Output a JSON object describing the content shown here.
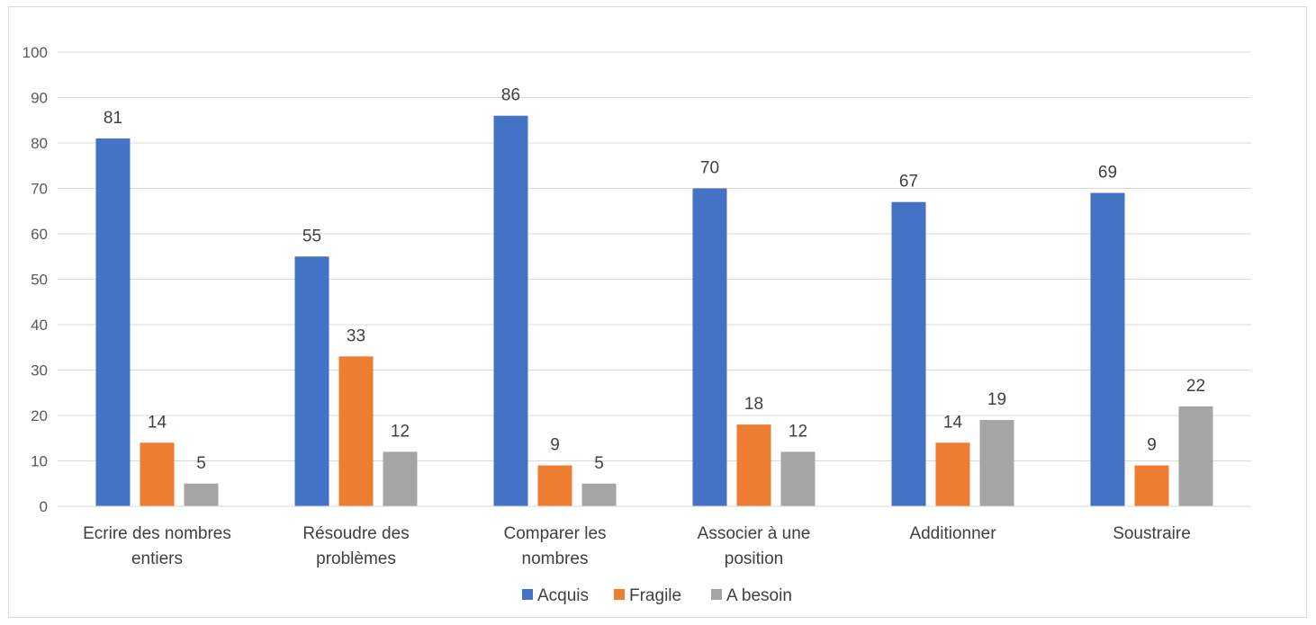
{
  "chart_data": {
    "type": "bar",
    "categories": [
      [
        "Ecrire des nombres",
        "entiers"
      ],
      [
        "Résoudre des",
        "problèmes"
      ],
      [
        "Comparer les",
        "nombres"
      ],
      [
        "Associer à une",
        "position"
      ],
      [
        "Additionner"
      ],
      [
        "Soustraire"
      ]
    ],
    "series": [
      {
        "name": "Acquis",
        "color": "#4472C4",
        "values": [
          81,
          55,
          86,
          70,
          67,
          69
        ]
      },
      {
        "name": "Fragile",
        "color": "#ED7D31",
        "values": [
          14,
          33,
          9,
          18,
          14,
          9
        ]
      },
      {
        "name": "A besoin",
        "color": "#A5A5A5",
        "values": [
          5,
          12,
          5,
          12,
          19,
          22
        ]
      }
    ],
    "ylim": [
      0,
      100
    ],
    "yticks": [
      0,
      10,
      20,
      30,
      40,
      50,
      60,
      70,
      80,
      90,
      100
    ],
    "grid": true,
    "gridColor": "#d9d9d9",
    "legend": "bottom",
    "data_labels": true
  }
}
